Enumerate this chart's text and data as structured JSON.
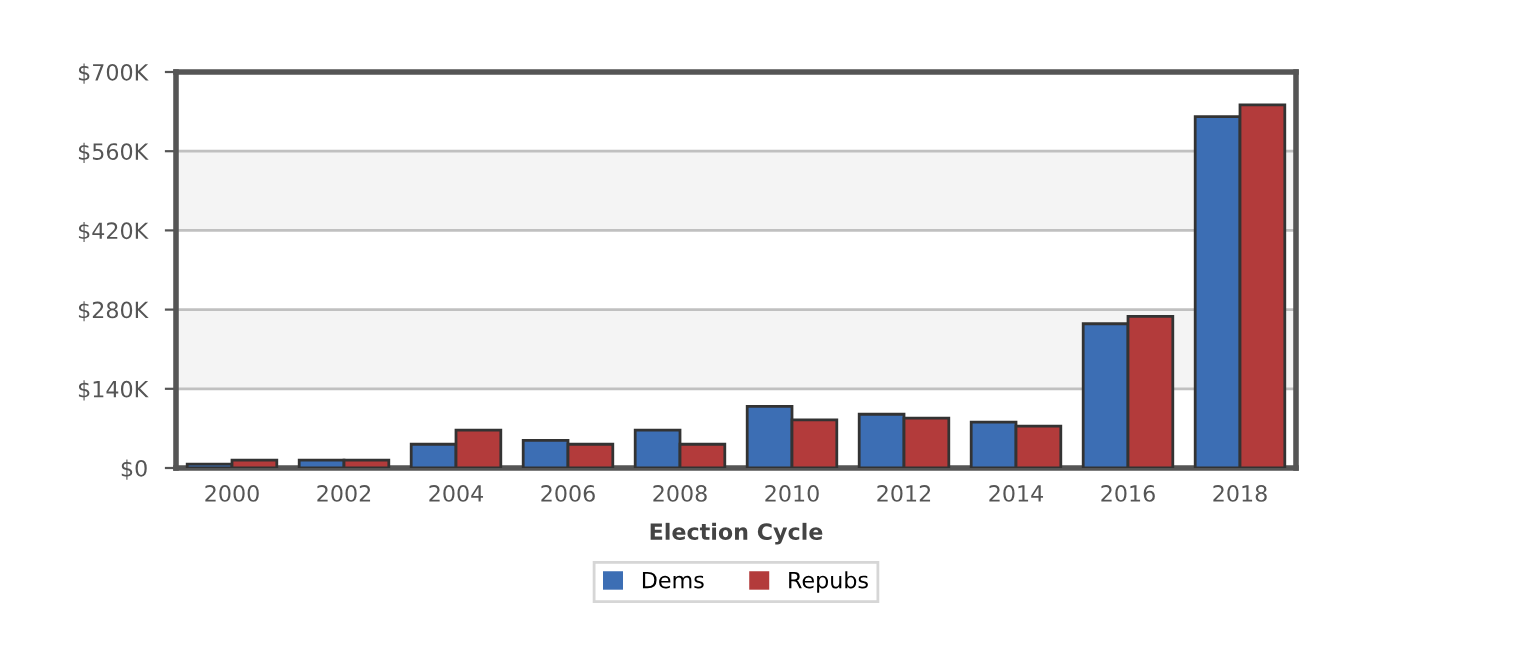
{
  "chart_data": {
    "type": "bar",
    "xlabel": "Election Cycle",
    "categories": [
      "2000",
      "2002",
      "2004",
      "2006",
      "2008",
      "2010",
      "2012",
      "2014",
      "2016",
      "2018"
    ],
    "series": [
      {
        "name": "Dems",
        "color": "#3c6eb4",
        "values": [
          7,
          14,
          42,
          49,
          67,
          109,
          95,
          81,
          255,
          621
        ]
      },
      {
        "name": "Repubs",
        "color": "#b33b3b",
        "values": [
          14,
          14,
          67,
          42,
          42,
          85,
          88,
          74,
          268,
          642
        ]
      }
    ],
    "ylim": [
      0,
      700
    ],
    "yticks": [
      {
        "value": 0,
        "label": "$0"
      },
      {
        "value": 140,
        "label": "$140K"
      },
      {
        "value": 280,
        "label": "$280K"
      },
      {
        "value": 420,
        "label": "$420K"
      },
      {
        "value": 560,
        "label": "$560K"
      },
      {
        "value": 700,
        "label": "$700K"
      }
    ],
    "bands": [
      {
        "axis": "y",
        "from": 140,
        "to": 280,
        "color": "#f4f4f4"
      },
      {
        "axis": "y",
        "from": 420,
        "to": 560,
        "color": "#f4f4f4"
      }
    ],
    "grid": "y",
    "legend": "bottom"
  }
}
